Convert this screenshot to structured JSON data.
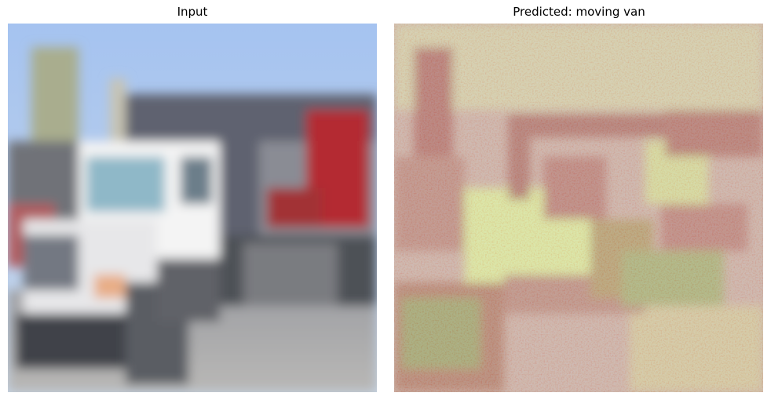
{
  "panels": [
    {
      "title": "Input"
    },
    {
      "title": "Predicted: moving van"
    }
  ],
  "colors": {
    "sky": "#a9c7ee",
    "truck_white": "#f2f2f2",
    "trailer_gray": "#6b6e78",
    "red_stripe": "#b5262b",
    "road": "#a9a9ab",
    "heat_red": "#cc4a50",
    "heat_yellow": "#e8dc7a",
    "heat_cyan": "#7fe0d0"
  }
}
